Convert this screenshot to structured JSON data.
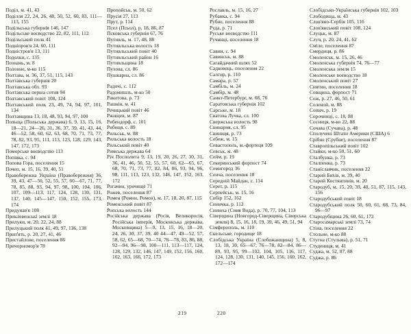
{
  "pages": {
    "left": {
      "number": "219",
      "columns": [
        [
          "Поділ, м. 41, 43",
          "Поділля 22, 24, 26, 48, 50, 52, 60, 83, 111—113, 155",
          "Подільська губернія 146, 147",
          "Подільське воєводство 22, 82, 111, 112",
          "Подільський полк 41",
          "Подніпров'я 24, 60, 111",
          "Подністров'я 13, 111",
          "Подолки, с. 135",
          "Познань, м. 8",
          "Полонне, м-ко 115",
          "Полтава, м. 36, 37, 51, 115, 143",
          "Полтавська губернія 20",
          "Полтавська обл. 93",
          "Полтавська перша сотня 94",
          "Полтавський повіт 108, 124",
          "Полтавський полк 23, 49, 74, 94, 97, 101, 134",
          "Полтавщина 13, 18, 48, 93, 94, 97, 100",
          "Польща (Польська держава) 6, 9, 13, 15, 16, 18—21, 24—26, 31, 36, 37, 39, 41, 43, 44, 46—52, 58, 60, 62, 63, 68, 70, 71, 73, 77, 78, 82, 93, 95, 111, 113, 123, 128, 129, 143, 147, 172, 173",
          "Поморське воєводство 113",
          "Попівка, с. 94",
          "Попова Гора, поселення 15",
          "Почеп, м. 15, 16, 39, 40, 51",
          "Правобережна Україна (Правобережжя) 36, 39, 43, 47—50, 52, 55, 57, 60—67, 71, 77, 78, 85, 88, 93, 94, 97, 98, 100, 104, 106, 107, 109—113, 117, 124, 128, 130, 131, 137, 140, 145—147, 150, 152, 155, 173, 174",
          "Придунав'я 108",
          "Приклевенські землі 18",
          "Прилуки, м. 20, 22, 24, 88",
          "Прилуцький полк 41, 49, 97, 136, 138",
          "Прип'ять, р. 20, 27, 41, 46",
          "Пристайлове, поселення 86",
          "Причорномор'я 78"
        ],
        [
          "Пропойськ, м. 50, 62",
          "Прусія 27, 113",
          "Прут, р. 114",
          "Псел (Псьол), р. 18, 86, 87",
          "Псковська губернія 67, 76",
          "Путивль, м. 17, 48, 88",
          "Путивльська волость 18",
          "Путивльський повіт 40",
          "Путивльський район 16",
          "Путивльщина 18",
          "Пухова, сл. 86",
          "Пушкарна, сл. 86",
          "",
          "Радичі, с. 112",
          "Радомишль, м-ко 50",
          "Ракитова, р. 73",
          "Рашків, м. 41",
          "Речицький повіт 46",
          "Ржищев, м. 87",
          "Рибендорф, с. 101",
          "Рибиця, с. 89",
          "Рильськ, м. 88",
          "Рильська волость 18",
          "Рильський повіт 40",
          "Римська держава 64",
          "Річ Посполита 9, 13, 19, 20, 26, 27, 30, 31, 36, 41, 46, 50, 52, 55, 57, 60, 62—65, 67, 68, 70, 71, 73, 77, 82, 84, 86, 93, 94, 96, 98, 111, 113, 123, 132, 146, 147, 152, 163, 172",
          "Рогачин, урочище 71",
          "Рожев, поселення 87",
          "Ромен (Ромни, Ромон), м. 17, 18, 20, 87, 115",
          "Роменський повіт 87",
          "Ропська волость 144",
          "Російська держава (Росія, Великоросія, Російська імперія, Московська держава, Московщина) 5—9, 13, 15, 16, 18—20, 24, 26, 30, 37, 39, 40 44—47, 49—52, 57, 58, 62, 65—68, 70—74, 76—78, 83, 86, 88, 92—94, 96—98, 100—111, 113—117, 124, 128, 129, 132, 146, 147, 149, 152, 156, 160, 162, 163, 166, 172, 173"
        ]
      ]
    },
    "right": {
      "number": "220",
      "columns": [
        [
          "Рославль, м. 15, 16, 27",
          "Рубанка, с. 94",
          "Рубне, поселення 88",
          "Руда, р. 71",
          "Руське воєводство 111",
          "Ручинці, поселення 18",
          "",
          "Савин, с. 94",
          "Савинськ, м. 88",
          "Сагайдачний шлях 52",
          "Садковець, поселення 22",
          "Салгир, р. 110",
          "Самара, р. 57",
          "Самбіль, м. 24",
          "Самбір, м. 48",
          "Санкт-Петербург, м. 68, 76",
          "Саратовська губернія 102",
          "Сарське, м. 18",
          "Сватова Лучка, сл. 100",
          "Свержська волость 98",
          "Свинарня, сл. 95",
          "Свиниця, р. 73",
          "Себеж, м. 15",
          "Севастополь, м.-фортеця 109",
          "Севськ, м. 48",
          "Сейм, р. 19",
          "Секеринський форпост 74",
          "Семигород 36",
          "Сенча, поселення 18",
          "Середній Майдан, с. 114",
          "Серет, р. 115",
          "Серпейськ, м. 15, 16",
          "Сибір 152, 162",
          "Синичка, р. 112",
          "Синюха (Синя Вода), р. 70, 77, 104, 113",
          "Сіверщина (Новгород-Сіверщина, Сіверська земля) 8, 15, 16, 18, 19, 39, 46, 49, 51, 94",
          "Сімферополь, м. 110",
          "Скельське, городище 18",
          "Слобідська Україна (Слобожанщина) 5, 8, 13, 18, 30, 65—67, 76—78, 82—84, 86—89, 93, 95, 99—102, 104, 105, 116, 117, 124, 128, 130, 131, 140, 145, 156, 160, 162, 172—174"
        ],
        [
          "Слобідсько-Українська губернія 102, 103",
          "Слободища, м. 43",
          "Слов'яно-Сербія 105, 116",
          "Слов'янський повіт 108, 124",
          "Слуцьк, м. 87",
          "Случ, р. 20, 24, 41, 62",
          "Сміле, поселення 87",
          "Смердиця, р. 86",
          "Смоленськ, м. 15, 26, 46",
          "Смоленська губернія 74, 76—77",
          "Смоленська земля 15",
          "Смоленське воєводство 18",
          "Смоленський повіт 27",
          "Снятин, поселення 18",
          "Совщина, форпост 71",
          "Сож, р. 27, 46, 50, 61",
          "Соленой, м. 88",
          "Сопич, р. 19",
          "Сорочинці, с. 18, 88",
          "Сосниця, м-ко 22, 88",
          "Сочава (Сучава), р. 48",
          "Сполучені Штати Америки (США) 6",
          "Срібне (Срубне), поселення 87",
          "Ставропільський повіт 102",
          "Стайки, м-ко 50, 51, 60",
          "Сталбунка, р. 73",
          "Сталпенка, р. 73",
          "Станіславчик, поселення 22",
          "Старий Бихів, м. 39, 40",
          "Старий Костянтинів, м. 20",
          "Стародуб, м. 15, 20, 39, 40, 51, 87, 115, 143, 156",
          "Стародубський повіт 18",
          "Стародубський полк 50, 60, 61, 68, 73, 84, 96—97",
          "Стародубщина 26, 60, 61, 172",
          "Старосамарські землі 73, 74",
          "Стіна, поселення 22",
          "Стольне, м-ко 88",
          "Стугна (Стульма), р. 51, 71",
          "Студениця, м. 41",
          "Суджа, м. 52, 87, 88",
          "Суджа, р. 86"
        ]
      ]
    }
  }
}
